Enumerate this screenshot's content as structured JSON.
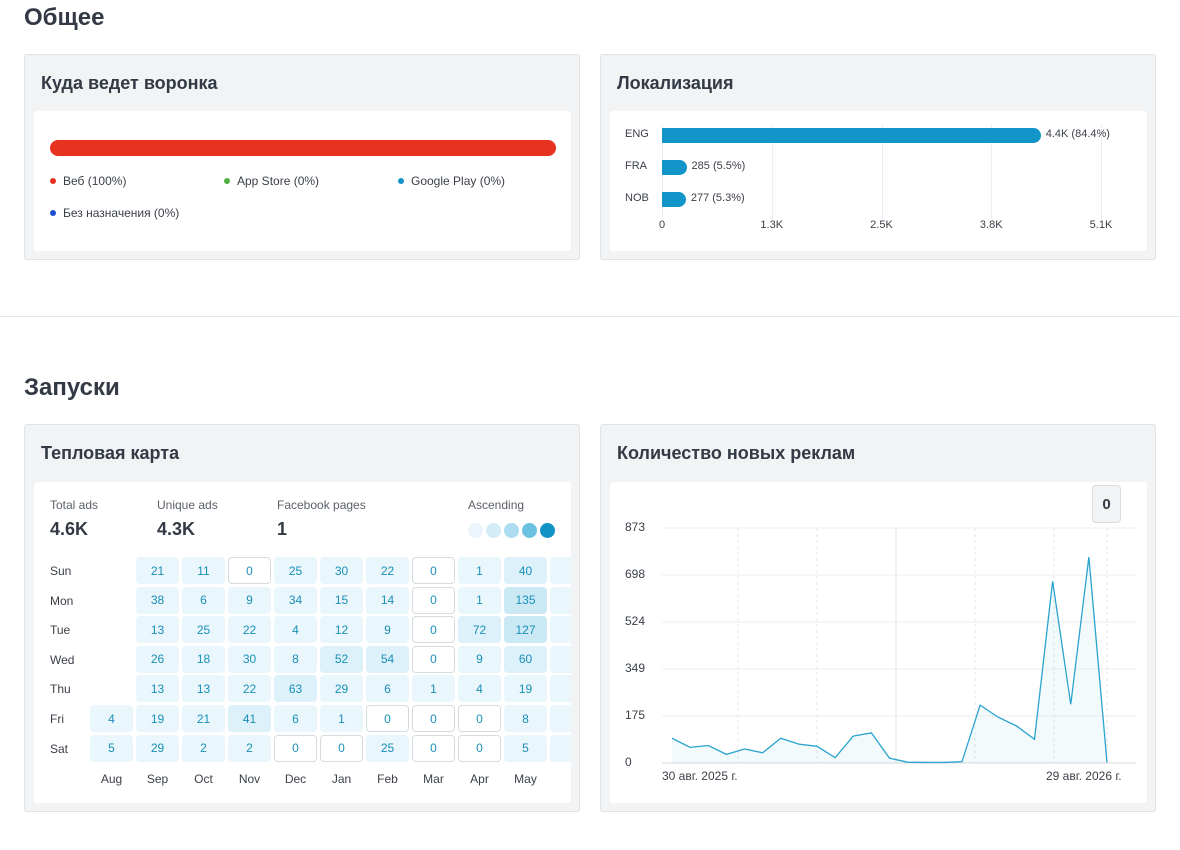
{
  "sections": {
    "general_title": "Общее",
    "launches_title": "Запуски"
  },
  "funnel": {
    "title": "Куда ведет воронка",
    "legend": [
      {
        "label": "Веб (100%)",
        "color": "#e6321f"
      },
      {
        "label": "App Store (0%)",
        "color": "#52b043"
      },
      {
        "label": "Google Play (0%)",
        "color": "#1295c9"
      },
      {
        "label": "Без назначения (0%)",
        "color": "#1d4fd1"
      }
    ]
  },
  "localization": {
    "title": "Локализация",
    "chart_data": {
      "type": "bar",
      "orientation": "horizontal",
      "categories": [
        "ENG",
        "FRA",
        "NOB"
      ],
      "values": [
        4400,
        285,
        277
      ],
      "value_labels": [
        "4.4K (84.4%)",
        "285 (5.5%)",
        "277 (5.3%)"
      ],
      "x_ticks": [
        "0",
        "1.3K",
        "2.5K",
        "3.8K",
        "5.1K"
      ],
      "xlim": [
        0,
        5100
      ],
      "bar_color": "#1295c9"
    }
  },
  "heatmap": {
    "title": "Тепловая карта",
    "stats": [
      {
        "label": "Total ads",
        "value": "4.6K"
      },
      {
        "label": "Unique ads",
        "value": "4.3K"
      },
      {
        "label": "Facebook pages",
        "value": "1"
      }
    ],
    "scale_label": "Ascending",
    "chart_data": {
      "type": "heatmap",
      "days": [
        "Sun",
        "Mon",
        "Tue",
        "Wed",
        "Thu",
        "Fri",
        "Sat"
      ],
      "months": [
        "Aug",
        "Sep",
        "Oct",
        "Nov",
        "Dec",
        "Jan",
        "Feb",
        "Mar",
        "Apr",
        "May"
      ],
      "columns": [
        [
          null,
          null,
          null,
          null,
          null,
          4,
          5
        ],
        [
          21,
          38,
          13,
          26,
          13,
          19,
          29
        ],
        [
          11,
          6,
          25,
          18,
          13,
          21,
          2
        ],
        [
          0,
          9,
          22,
          30,
          22,
          41,
          2
        ],
        [
          25,
          34,
          4,
          8,
          63,
          6,
          0
        ],
        [
          30,
          15,
          12,
          52,
          29,
          1,
          0
        ],
        [
          22,
          14,
          9,
          54,
          6,
          0,
          25
        ],
        [
          0,
          0,
          0,
          0,
          1,
          0,
          0
        ],
        [
          1,
          1,
          72,
          9,
          4,
          0,
          0
        ],
        [
          40,
          135,
          127,
          60,
          19,
          8,
          5
        ]
      ]
    }
  },
  "new_ads": {
    "title": "Количество новых реклам",
    "button_label": "0",
    "chart_data": {
      "type": "line",
      "y_ticks": [
        "873",
        "698",
        "524",
        "349",
        "175",
        "0"
      ],
      "ylim": [
        0,
        873
      ],
      "x_labels": [
        "30 авг. 2025 г.",
        "29 авг. 2026 г."
      ],
      "color": "#2aa3cf",
      "values": [
        92,
        58,
        65,
        32,
        52,
        38,
        92,
        70,
        62,
        20,
        100,
        112,
        18,
        3,
        2,
        2,
        5,
        215,
        170,
        138,
        88,
        675,
        218,
        765,
        2
      ]
    }
  }
}
